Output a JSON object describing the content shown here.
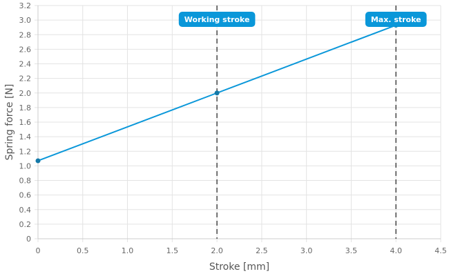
{
  "chart_data": {
    "type": "line",
    "title": "",
    "xlabel": "Stroke [mm]",
    "ylabel": "Spring force [N]",
    "xlim": [
      0,
      4.5
    ],
    "ylim": [
      0,
      3.2
    ],
    "xticks": [
      "0",
      "0.5",
      "1.0",
      "1.5",
      "2.0",
      "2.5",
      "3.0",
      "3.5",
      "4.0",
      "4.5"
    ],
    "yticks": [
      "0",
      "0.2",
      "0.4",
      "0.6",
      "0.8",
      "1.0",
      "1.2",
      "1.4",
      "1.6",
      "1.8",
      "2.0",
      "2.2",
      "2.4",
      "2.6",
      "2.8",
      "3.0",
      "3.2"
    ],
    "grid": true,
    "series": [
      {
        "name": "Spring force",
        "color": "#0a97d9",
        "x": [
          0,
          2,
          4
        ],
        "y": [
          1.07,
          2.0,
          2.93
        ]
      }
    ],
    "annotations": [
      {
        "label": "Working stroke",
        "x": 2.0,
        "color": "#0a97d9"
      },
      {
        "label": "Max. stroke",
        "x": 4.0,
        "color": "#0a97d9"
      }
    ]
  }
}
